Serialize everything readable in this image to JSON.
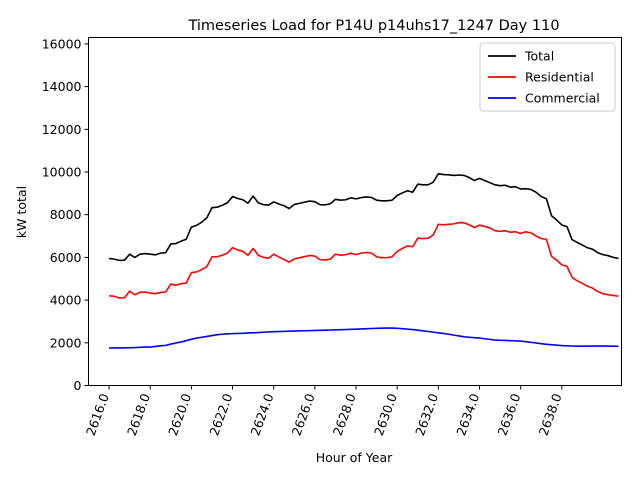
{
  "chart_data": {
    "type": "line",
    "title": "Timeseries Load for P14U p14uhs17_1247  Day 110",
    "xlabel": "Hour of Year",
    "ylabel": "kW total",
    "xlim": [
      2615.0,
      2640.9
    ],
    "ylim": [
      0,
      16300
    ],
    "xticks": [
      2616,
      2618,
      2620,
      2622,
      2624,
      2626,
      2628,
      2630,
      2632,
      2634,
      2636,
      2638
    ],
    "xtick_labels": [
      "2616.0",
      "2618.0",
      "2620.0",
      "2622.0",
      "2624.0",
      "2626.0",
      "2628.0",
      "2630.0",
      "2632.0",
      "2634.0",
      "2636.0",
      "2638.0"
    ],
    "yticks": [
      0,
      2000,
      4000,
      6000,
      8000,
      10000,
      12000,
      14000,
      16000
    ],
    "ytick_labels": [
      "0",
      "2000",
      "4000",
      "6000",
      "8000",
      "10000",
      "12000",
      "14000",
      "16000"
    ],
    "legend_position": "top-right",
    "x_start": 2616.0,
    "x_step": 0.25,
    "series": [
      {
        "name": "Total",
        "color": "#000000",
        "values": [
          5950,
          5920,
          5860,
          5870,
          6150,
          6000,
          6150,
          6180,
          6150,
          6120,
          6200,
          6220,
          6630,
          6650,
          6760,
          6850,
          7420,
          7500,
          7650,
          7850,
          8330,
          8350,
          8440,
          8560,
          8850,
          8760,
          8700,
          8540,
          8870,
          8560,
          8470,
          8450,
          8600,
          8500,
          8420,
          8290,
          8480,
          8530,
          8590,
          8640,
          8610,
          8470,
          8460,
          8510,
          8720,
          8680,
          8700,
          8790,
          8740,
          8800,
          8830,
          8810,
          8680,
          8650,
          8650,
          8680,
          8900,
          9020,
          9120,
          9050,
          9430,
          9400,
          9400,
          9520,
          9920,
          9880,
          9870,
          9840,
          9860,
          9840,
          9740,
          9600,
          9700,
          9600,
          9500,
          9400,
          9360,
          9380,
          9290,
          9310,
          9200,
          9220,
          9180,
          9050,
          8850,
          8750,
          7950,
          7750,
          7520,
          7440,
          6830,
          6700,
          6580,
          6450,
          6380,
          6220,
          6130,
          6080,
          6000,
          5950
        ]
      },
      {
        "name": "Residential",
        "color": "#ff0000",
        "values": [
          4200,
          4180,
          4100,
          4110,
          4420,
          4250,
          4370,
          4380,
          4330,
          4300,
          4360,
          4380,
          4750,
          4700,
          4770,
          4800,
          5290,
          5320,
          5430,
          5570,
          6030,
          6030,
          6100,
          6200,
          6460,
          6350,
          6280,
          6100,
          6420,
          6100,
          6000,
          5960,
          6150,
          6020,
          5900,
          5780,
          5930,
          5980,
          6040,
          6090,
          6060,
          5890,
          5880,
          5920,
          6150,
          6100,
          6130,
          6200,
          6130,
          6200,
          6230,
          6200,
          6030,
          5980,
          5990,
          6030,
          6280,
          6420,
          6540,
          6500,
          6900,
          6880,
          6900,
          7050,
          7550,
          7530,
          7550,
          7570,
          7630,
          7620,
          7530,
          7400,
          7510,
          7450,
          7380,
          7250,
          7220,
          7250,
          7180,
          7200,
          7120,
          7200,
          7150,
          7000,
          6880,
          6850,
          6050,
          5870,
          5650,
          5580,
          5060,
          4900,
          4780,
          4650,
          4560,
          4400,
          4300,
          4250,
          4220,
          4180
        ]
      },
      {
        "name": "Commercial",
        "color": "#0000ff",
        "values": [
          1760,
          1760,
          1760,
          1765,
          1770,
          1775,
          1790,
          1800,
          1800,
          1830,
          1860,
          1880,
          1940,
          1990,
          2040,
          2100,
          2170,
          2220,
          2260,
          2300,
          2340,
          2380,
          2400,
          2420,
          2430,
          2440,
          2445,
          2460,
          2470,
          2480,
          2500,
          2510,
          2520,
          2525,
          2535,
          2545,
          2550,
          2560,
          2565,
          2570,
          2580,
          2585,
          2590,
          2600,
          2610,
          2615,
          2620,
          2630,
          2640,
          2650,
          2660,
          2670,
          2680,
          2685,
          2690,
          2690,
          2680,
          2660,
          2640,
          2620,
          2590,
          2560,
          2530,
          2500,
          2470,
          2440,
          2400,
          2360,
          2320,
          2280,
          2260,
          2240,
          2220,
          2190,
          2160,
          2130,
          2120,
          2110,
          2100,
          2090,
          2080,
          2050,
          2020,
          1990,
          1960,
          1930,
          1910,
          1890,
          1870,
          1860,
          1850,
          1840,
          1840,
          1845,
          1850,
          1848,
          1846,
          1845,
          1840,
          1835
        ]
      }
    ]
  }
}
